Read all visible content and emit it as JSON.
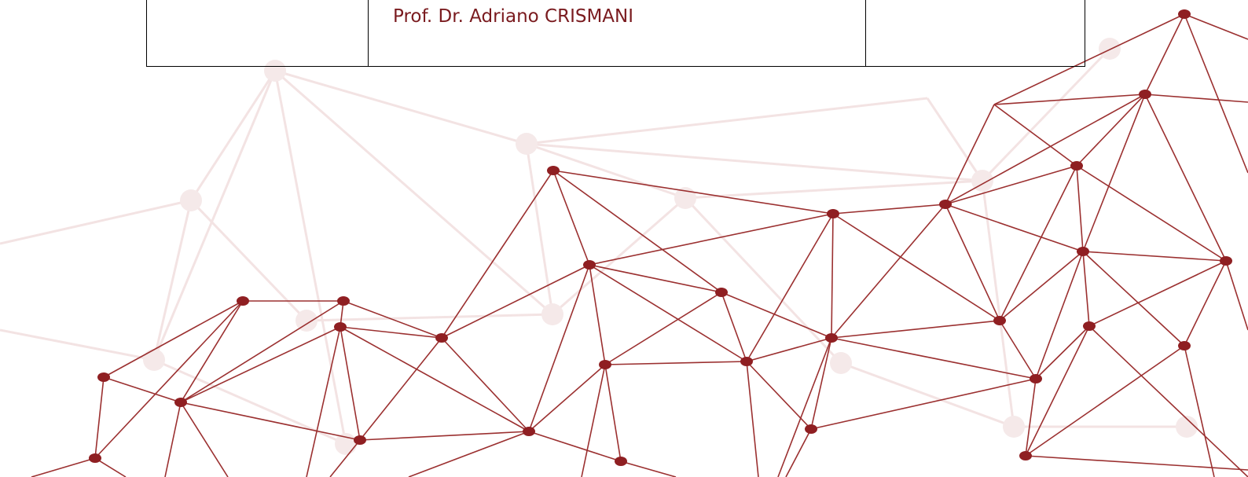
{
  "table": {
    "rows": [
      {
        "name": "Prof. Dr. Adriano CRISMANI"
      }
    ]
  }
}
